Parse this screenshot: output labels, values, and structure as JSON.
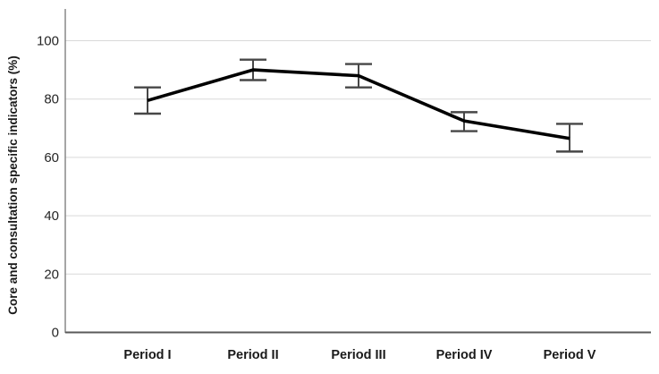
{
  "chart_data": {
    "type": "line",
    "title": "",
    "xlabel": "",
    "ylabel": "Core and consultation specific indicators (%)",
    "categories": [
      "Period I",
      "Period II",
      "Period III",
      "Period IV",
      "Period V"
    ],
    "series": [
      {
        "name": "Core and consultation specific indicators (%)",
        "points": [
          {
            "category": "Period I",
            "value": 79.5,
            "err_low": 75,
            "err_high": 84
          },
          {
            "category": "Period II",
            "value": 90,
            "err_low": 86.5,
            "err_high": 93.5
          },
          {
            "category": "Period III",
            "value": 88,
            "err_low": 84,
            "err_high": 92
          },
          {
            "category": "Period IV",
            "value": 72.5,
            "err_low": 69,
            "err_high": 75.5
          },
          {
            "category": "Period V",
            "value": 66.5,
            "err_low": 62,
            "err_high": 71.5
          }
        ]
      }
    ],
    "yticks": [
      0,
      20,
      40,
      60,
      80,
      100
    ],
    "ylim": [
      0,
      110
    ],
    "grid": "horizontal",
    "legend": "none",
    "error_bars": true,
    "colors": {
      "line": "#000000",
      "error_bar": "#474747",
      "gridline": "#d9d9d9",
      "axis_y": "#808080",
      "axis_x": "#595959",
      "tick_text": "#262626",
      "category_text": "#1a1a1a",
      "background": "#ffffff"
    }
  }
}
